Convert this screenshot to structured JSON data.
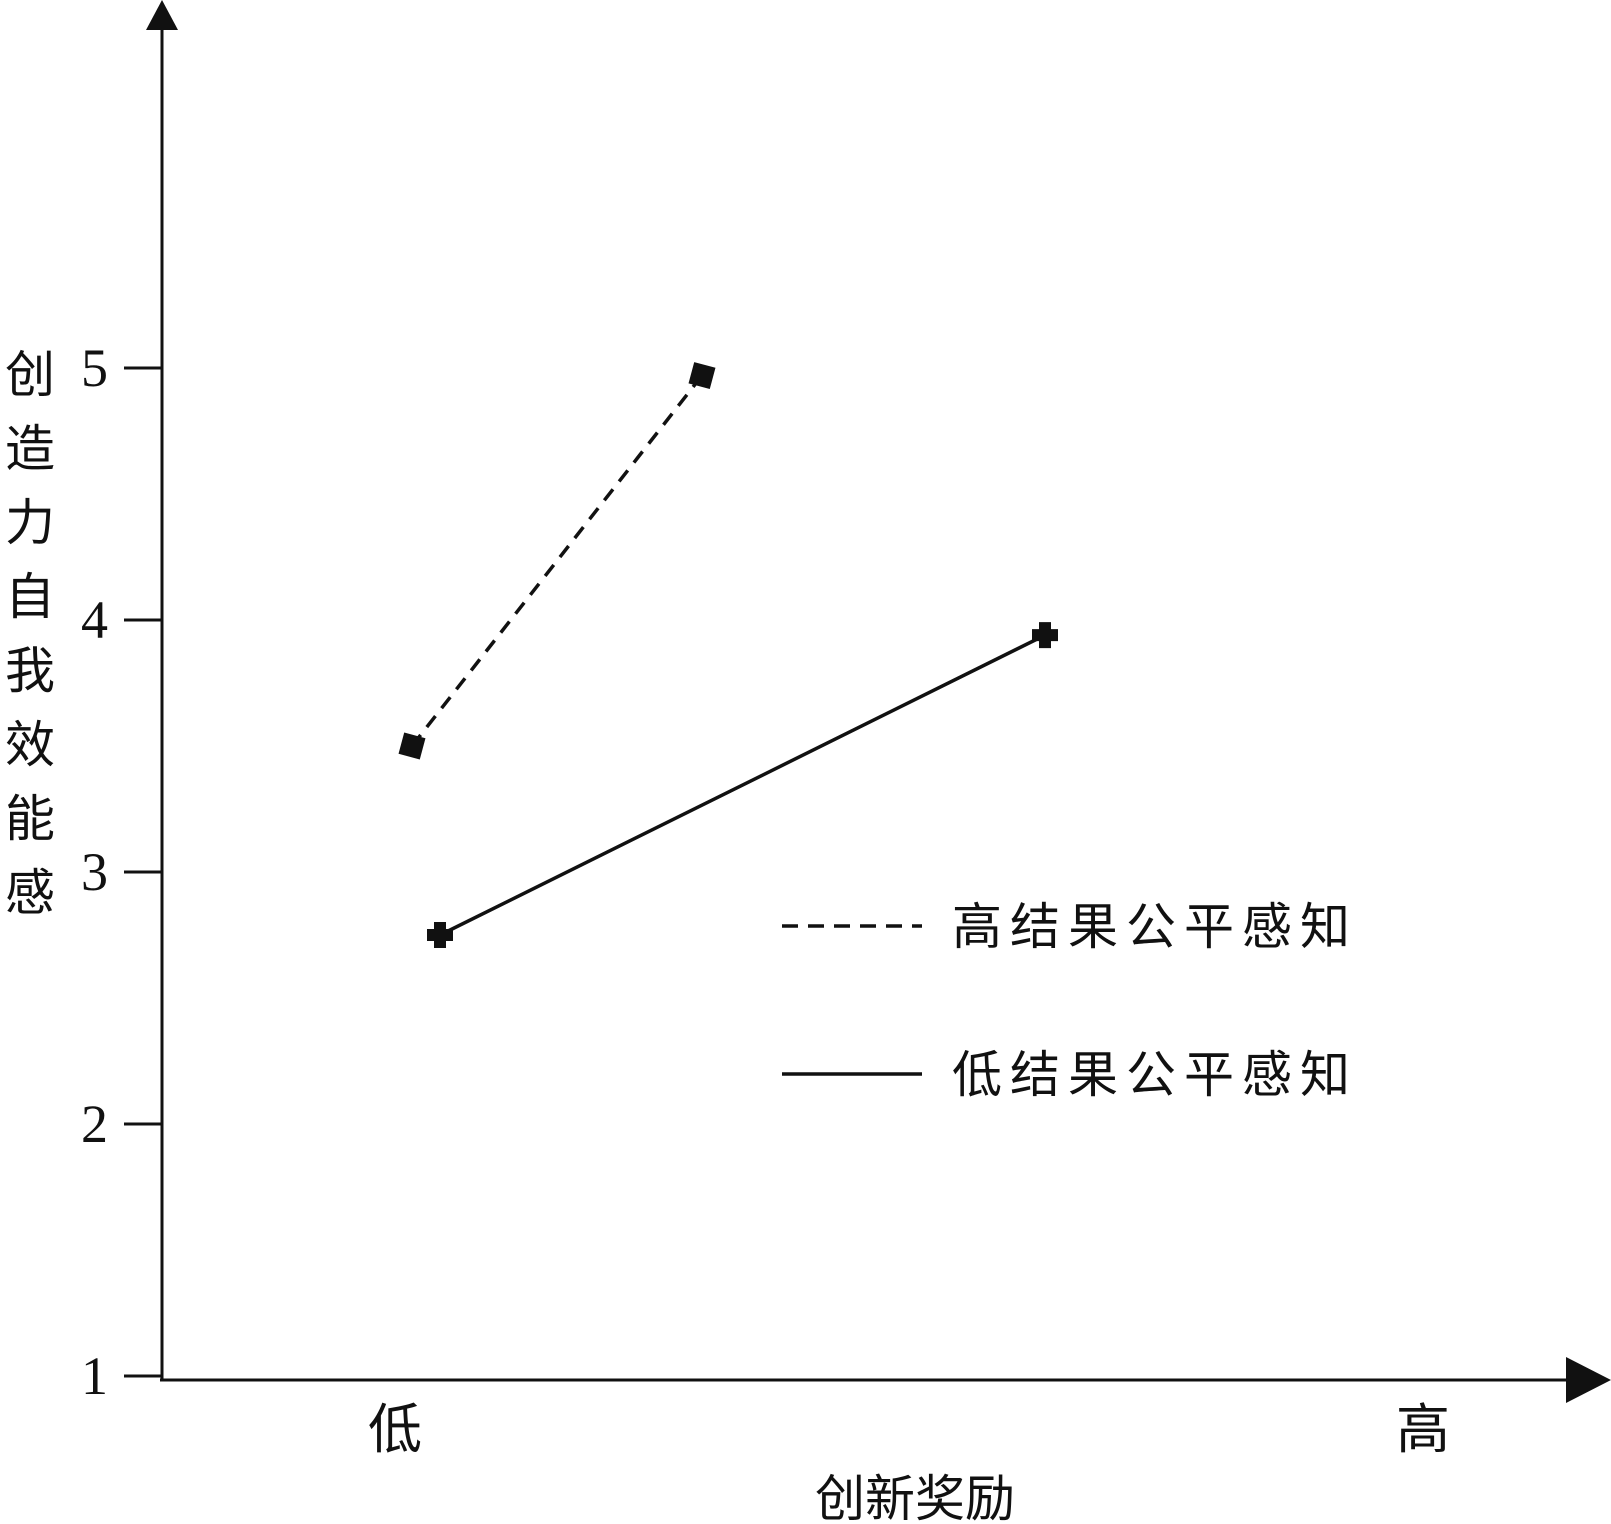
{
  "chart_data": {
    "type": "line",
    "xlabel": "创新奖励",
    "ylabel": "创造力自我效能感",
    "categories": [
      "低",
      "高"
    ],
    "yticks": [
      1,
      2,
      3,
      4,
      5
    ],
    "ylim": [
      0,
      5.4
    ],
    "grid": false,
    "legend_position": "bottom-right",
    "series": [
      {
        "name": "高结果公平感知",
        "line_style": "dashed",
        "marker": "square",
        "color": "#111111",
        "points": [
          {
            "x": "低",
            "y": 3.5
          },
          {
            "x": "高",
            "y": 4.97
          }
        ]
      },
      {
        "name": "低结果公平感知",
        "line_style": "solid",
        "marker": "cross",
        "color": "#111111",
        "points": [
          {
            "x": "低",
            "y": 2.75
          },
          {
            "x": "高",
            "y": 3.94
          }
        ]
      }
    ]
  }
}
